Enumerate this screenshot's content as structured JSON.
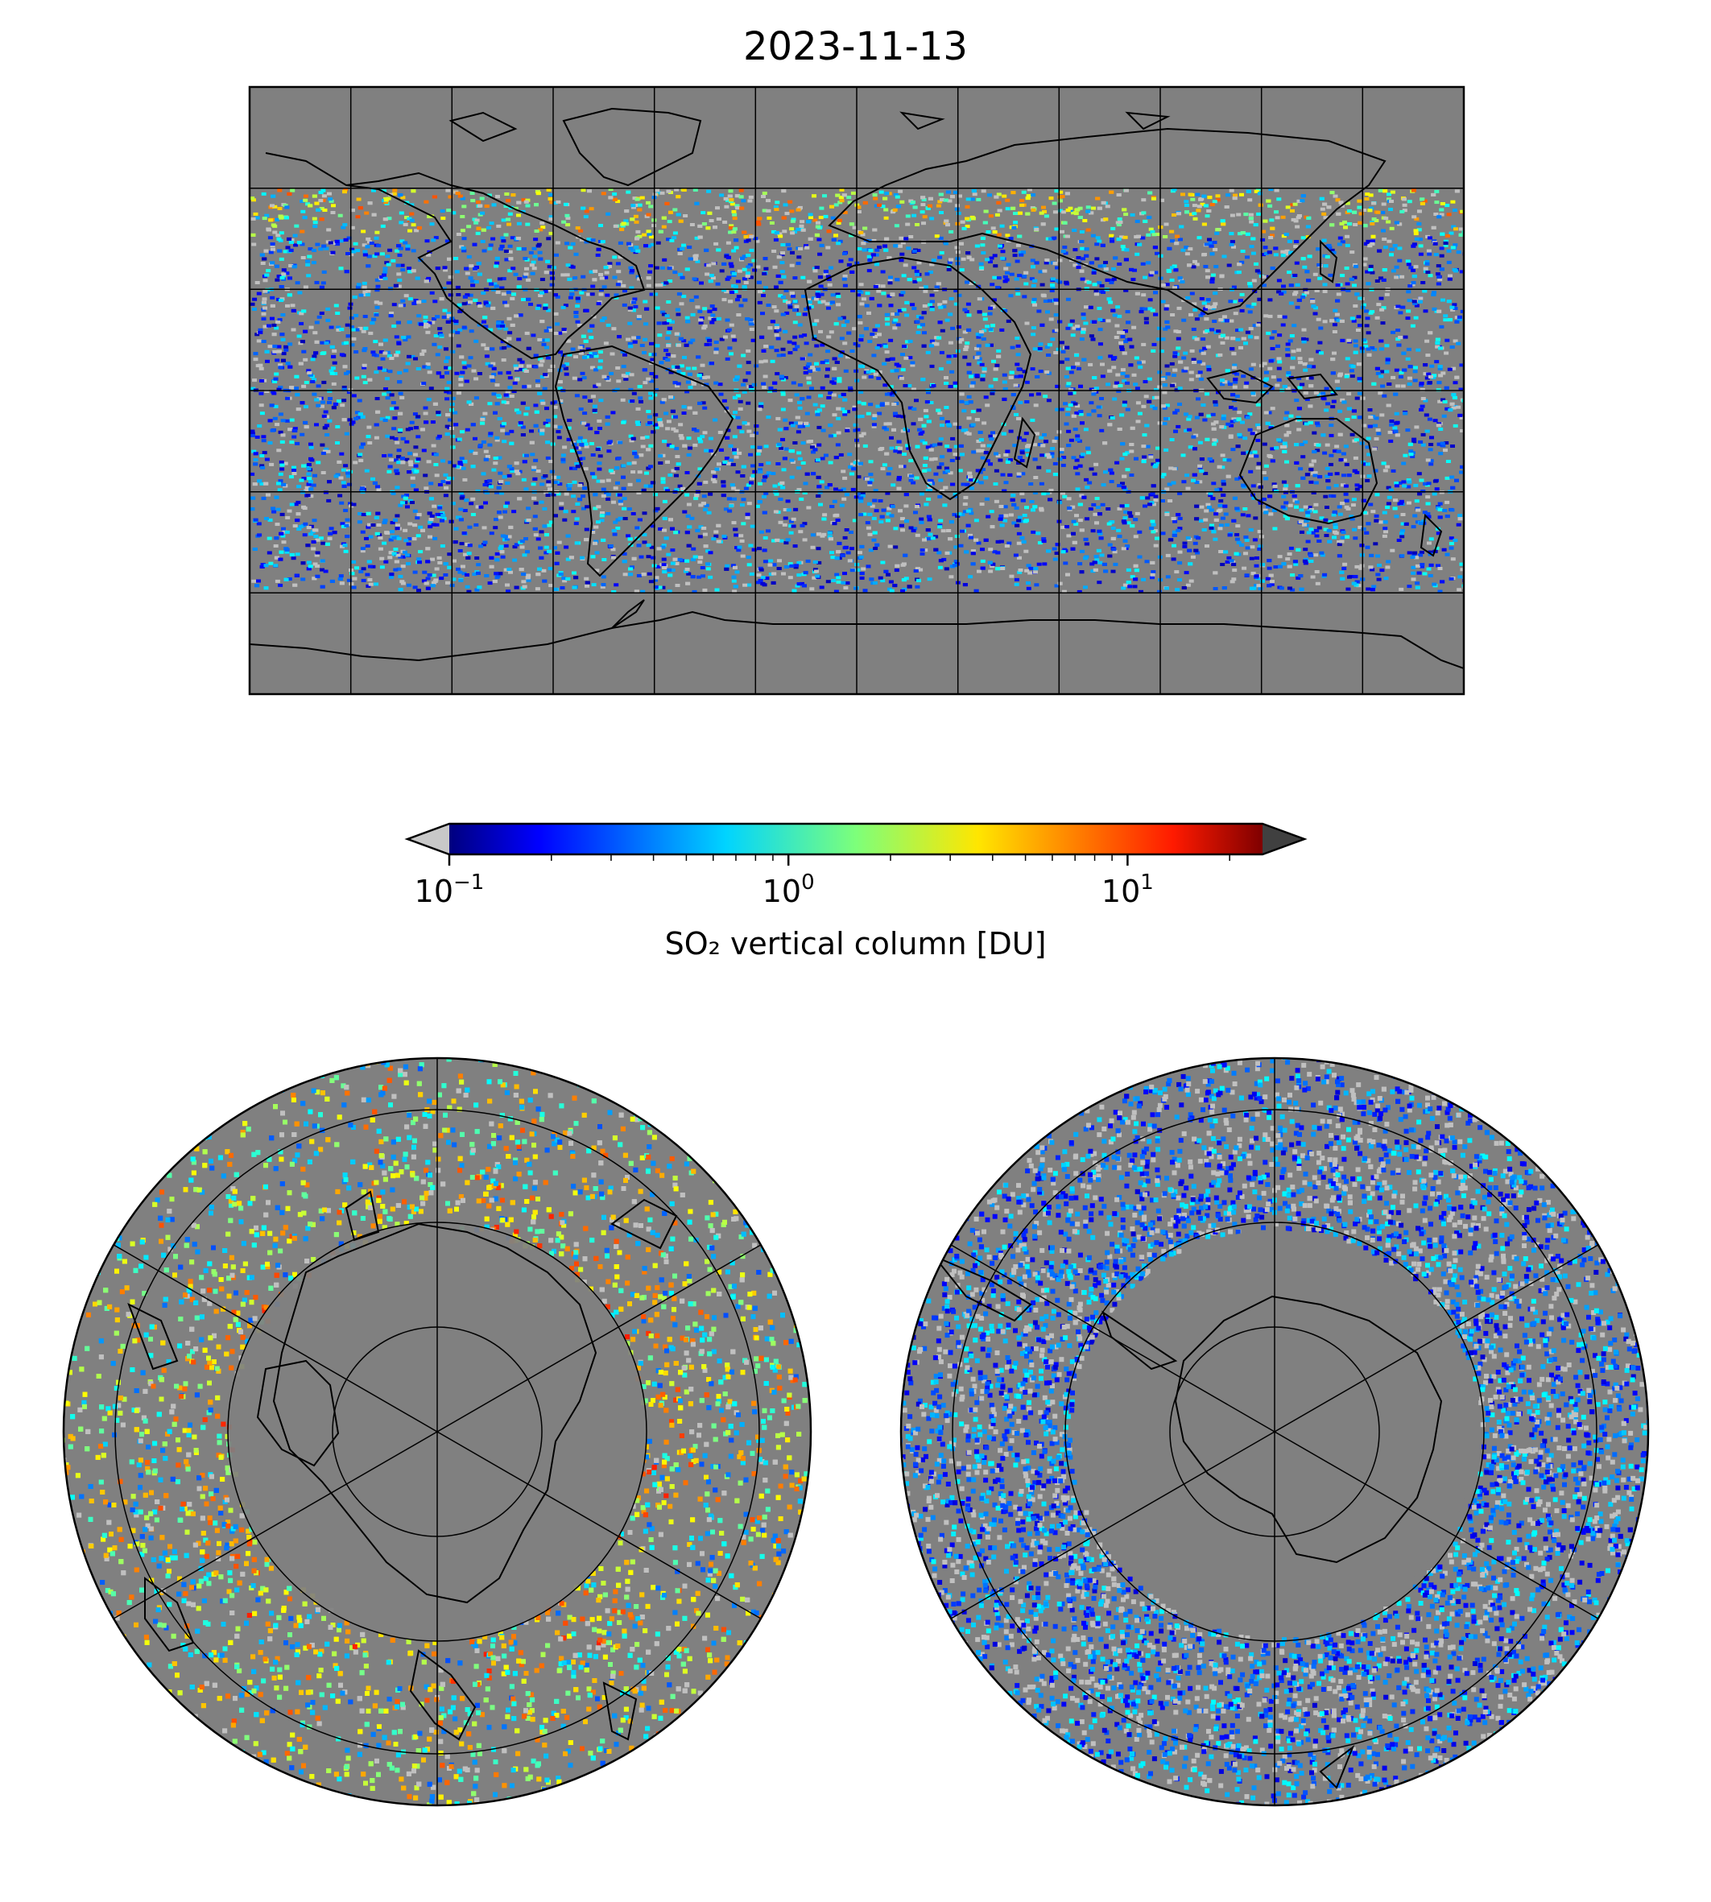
{
  "title": "2023-11-13",
  "colorbar": {
    "label": "SO₂ vertical column [DU]",
    "scale": "log",
    "range": [
      0.1,
      25
    ],
    "ticks": [
      {
        "base": "10",
        "exp": "−1",
        "value": 0.1
      },
      {
        "base": "10",
        "exp": "0",
        "value": 1
      },
      {
        "base": "10",
        "exp": "1",
        "value": 10
      }
    ],
    "colormap": "jet",
    "under_color": "#c8c8c8",
    "over_color": "#404040",
    "extend": "both"
  },
  "colors": {
    "ocean_land_background": "#808080",
    "outline": "#000000",
    "low_value_pixel": "#c0c0c0"
  },
  "panels": [
    {
      "id": "global",
      "projection": "plate-carree",
      "gridlines": true
    },
    {
      "id": "north-polar",
      "projection": "north-polar-stereographic",
      "gridlines": true
    },
    {
      "id": "south-polar",
      "projection": "south-polar-stereographic",
      "gridlines": true
    }
  ]
}
